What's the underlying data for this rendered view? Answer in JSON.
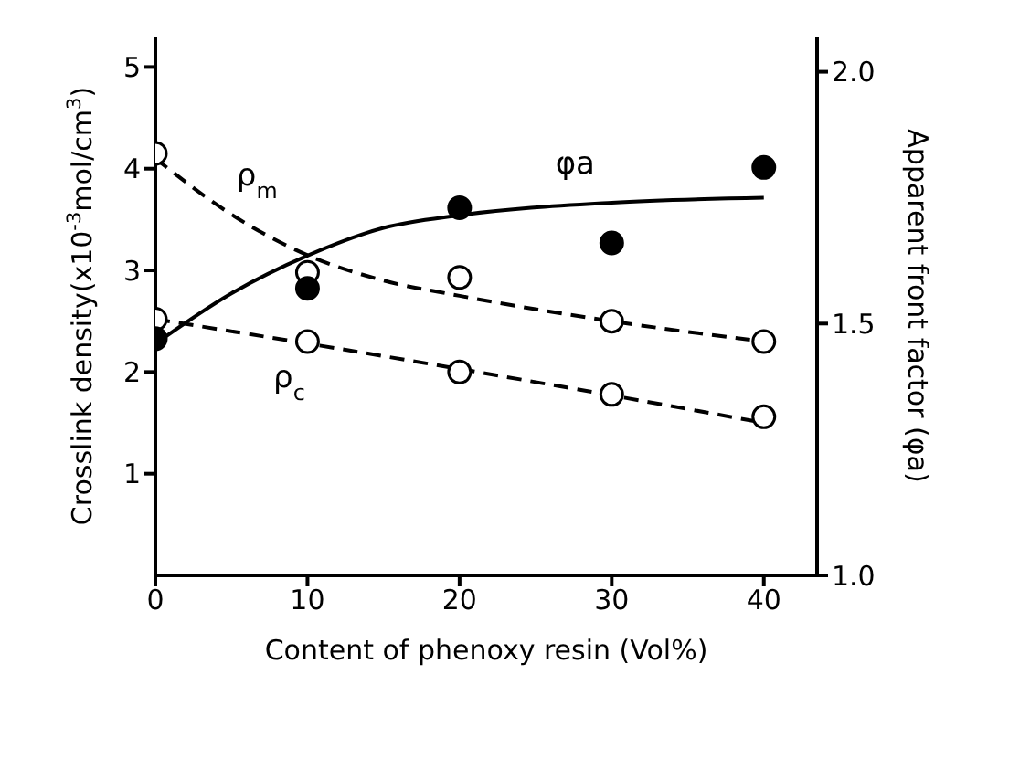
{
  "chart_data": {
    "type": "scatter",
    "xlabel": "Content of phenoxy resin   (Vol%)",
    "ylabel": "Crosslink density(x10$^{-3}$mol/cm$^{3}$)",
    "y2label": "Apparent front factor (φa)",
    "xlim": [
      0,
      43.5
    ],
    "xticks": [
      0,
      10,
      20,
      30,
      40
    ],
    "ylim": [
      0,
      5.3
    ],
    "yticks": [
      1,
      2,
      3,
      4,
      5
    ],
    "y2lim": [
      1,
      2.07
    ],
    "y2ticks": [
      {
        "value": 1,
        "label": "1.0"
      },
      {
        "value": 1.5,
        "label": "1.5"
      },
      {
        "value": 2,
        "label": "2.0"
      }
    ],
    "grid": false,
    "legend": false,
    "marker": "circle",
    "series": [
      {
        "color": "#ffffff",
        "x": [
          0,
          10,
          20,
          30,
          40
        ],
        "values": [
          4.15,
          2.98,
          2.93,
          2.5,
          2.3
        ]
      },
      {
        "color": "#ffffff",
        "x": [
          0,
          10,
          20,
          30,
          40
        ],
        "values": [
          2.52,
          2.3,
          2.0,
          1.78,
          1.56
        ]
      },
      {
        "color": "#000000",
        "axis": "y2",
        "x": [
          0,
          10,
          20,
          30,
          40
        ],
        "values": [
          1.47,
          1.57,
          1.73,
          1.66,
          1.81
        ]
      },
      {
        "type": "line",
        "name": "ρ$_{m}$",
        "color": "#000000",
        "line_style": "dashed",
        "marker": "none",
        "x": [
          0,
          5,
          10,
          15,
          20,
          30,
          40
        ],
        "values": [
          4.1,
          3.55,
          3.15,
          2.9,
          2.75,
          2.5,
          2.3
        ]
      },
      {
        "type": "line",
        "name": "ρ$_{c}$",
        "color": "#000000",
        "line_style": "dashed",
        "marker": "none",
        "x": [
          0,
          10,
          20,
          30,
          40
        ],
        "values": [
          2.52,
          2.28,
          2.03,
          1.77,
          1.5
        ]
      },
      {
        "type": "line",
        "name": "φa",
        "color": "#000000",
        "line_style": "solid",
        "marker": "none",
        "axis": "y2",
        "x": [
          0,
          5,
          10,
          15,
          20,
          30,
          40
        ],
        "values": [
          1.46,
          1.56,
          1.635,
          1.69,
          1.715,
          1.74,
          1.75
        ]
      }
    ]
  }
}
